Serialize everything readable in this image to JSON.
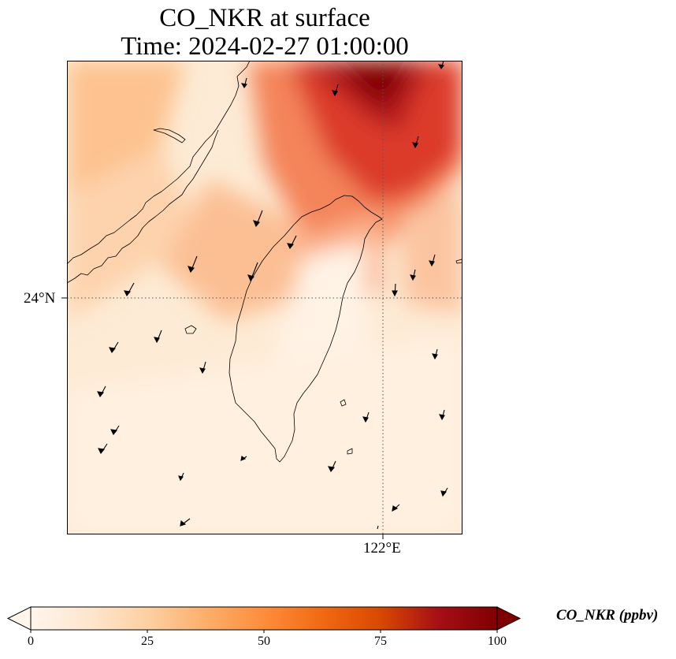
{
  "title": {
    "line1": "CO_NKR at surface",
    "line2": "Time: 2024-02-27 01:00:00"
  },
  "map": {
    "lat_label": "24°N",
    "lon_label": "122°E",
    "grid_style": "dotted",
    "coastline_color": "#000000"
  },
  "colorbar": {
    "label": "CO_NKR (ppbv)",
    "ticks": [
      "0",
      "25",
      "50",
      "75",
      "100"
    ],
    "min": 0,
    "max": 100,
    "extend": "both",
    "colors": [
      "#fff5eb",
      "#fee6ce",
      "#fdd0a2",
      "#fdae6b",
      "#fd8d3c",
      "#f16913",
      "#d94801",
      "#a50f15",
      "#7f0000"
    ]
  }
}
